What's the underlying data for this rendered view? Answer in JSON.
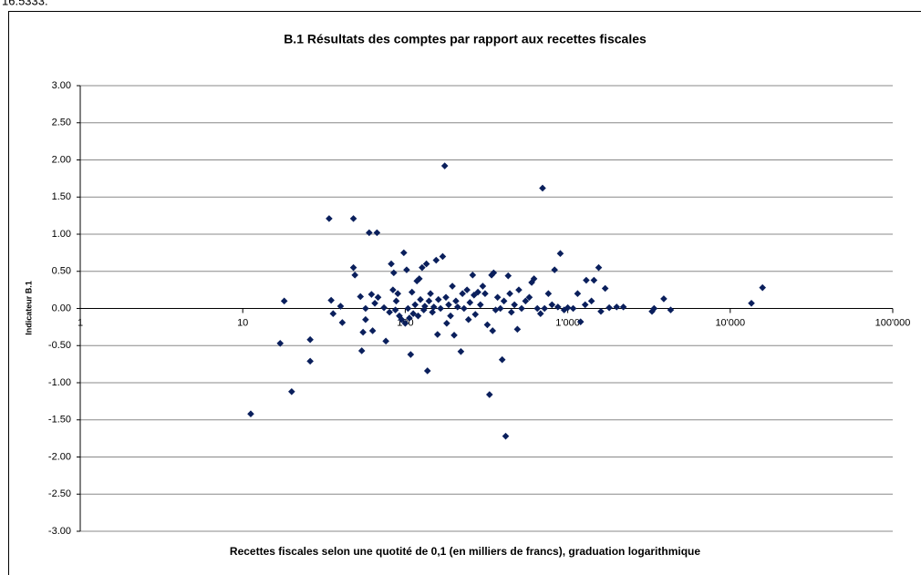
{
  "cropped_text": "16.5333.",
  "chart_data": {
    "type": "scatter",
    "title": "B.1 Résultats des comptes par rapport aux recettes fiscales",
    "xlabel": "Recettes fiscales selon une quotité de 0,1 (en milliers de francs), graduation logarithmique",
    "ylabel": "Indicateur B.1",
    "xscale": "log",
    "grid": true,
    "color": "#0a1f5c",
    "xlim": [
      1,
      100000
    ],
    "xticks": [
      1,
      10,
      100,
      {
        "value": 1000,
        "label": "1'000"
      },
      {
        "value": 10000,
        "label": "10'000"
      },
      {
        "value": 100000,
        "label": "100'000"
      }
    ],
    "ylim": [
      -3,
      3
    ],
    "yticks": [
      {
        "value": 3,
        "label": "3.00"
      },
      {
        "value": 2.5,
        "label": "2.50"
      },
      {
        "value": 2,
        "label": "2.00"
      },
      {
        "value": 1.5,
        "label": "1.50"
      },
      {
        "value": 1,
        "label": "1.00"
      },
      {
        "value": 0.5,
        "label": "0.50"
      },
      {
        "value": 0,
        "label": "0.00"
      },
      {
        "value": -0.5,
        "label": "-0.50"
      },
      {
        "value": -1,
        "label": "-1.00"
      },
      {
        "value": -1.5,
        "label": "-1.50"
      },
      {
        "value": -2,
        "label": "-2.00"
      },
      {
        "value": -2.5,
        "label": "-2.50"
      },
      {
        "value": -3,
        "label": "-3.00"
      }
    ],
    "x": [
      11.2,
      17,
      18,
      20,
      26,
      26,
      34,
      35,
      36,
      40,
      41,
      48,
      48,
      49,
      53,
      54,
      55,
      57,
      57,
      60,
      62,
      63,
      65,
      67,
      68,
      74,
      76,
      80,
      82,
      84,
      85,
      87,
      88,
      90,
      92,
      95,
      98,
      100,
      102,
      104,
      106,
      108,
      110,
      112,
      115,
      118,
      120,
      122,
      124,
      127,
      130,
      132,
      135,
      137,
      140,
      143,
      147,
      150,
      155,
      158,
      160,
      165,
      170,
      175,
      178,
      180,
      185,
      190,
      195,
      200,
      205,
      210,
      220,
      225,
      230,
      240,
      245,
      250,
      260,
      265,
      270,
      280,
      290,
      300,
      310,
      320,
      330,
      340,
      345,
      350,
      360,
      370,
      385,
      395,
      405,
      415,
      430,
      440,
      450,
      470,
      490,
      500,
      520,
      550,
      580,
      600,
      620,
      650,
      680,
      700,
      720,
      760,
      800,
      830,
      870,
      900,
      950,
      1000,
      1080,
      1150,
      1200,
      1280,
      1300,
      1400,
      1450,
      1550,
      1600,
      1700,
      1800,
      2000,
      2200,
      3300,
      3400,
      3900,
      4300,
      13500,
      15800
    ],
    "y": [
      -1.42,
      -0.47,
      0.1,
      -1.12,
      -0.42,
      -0.71,
      1.21,
      0.11,
      -0.07,
      0.03,
      -0.19,
      1.21,
      0.55,
      0.45,
      0.16,
      -0.57,
      -0.32,
      0,
      -0.15,
      1.02,
      0.19,
      -0.3,
      0.07,
      1.02,
      0.15,
      0.01,
      -0.44,
      -0.05,
      0.6,
      0.25,
      0.48,
      -0.02,
      0.1,
      0.2,
      -0.1,
      -0.15,
      0.75,
      -0.2,
      0.52,
      0,
      -0.13,
      -0.62,
      0.22,
      -0.07,
      0.05,
      0.37,
      -0.1,
      0.4,
      0.12,
      0.55,
      -0.02,
      0.03,
      0.6,
      -0.84,
      0.1,
      0.2,
      -0.05,
      0.02,
      0.65,
      -0.35,
      0.12,
      0,
      0.7,
      1.92,
      0.15,
      -0.2,
      0.05,
      -0.1,
      0.3,
      -0.36,
      0.1,
      0.02,
      -0.58,
      0.2,
      0,
      0.25,
      -0.15,
      0.08,
      0.45,
      0.18,
      -0.08,
      0.22,
      0.05,
      0.3,
      0.2,
      -0.22,
      -1.16,
      0.45,
      -0.3,
      0.48,
      -0.02,
      0.15,
      0,
      -0.69,
      0.1,
      -1.72,
      0.44,
      0.2,
      -0.05,
      0.05,
      -0.28,
      0.25,
      0,
      0.1,
      0.15,
      0.35,
      0.4,
      0,
      -0.07,
      1.62,
      0,
      0.2,
      0.05,
      0.52,
      0.02,
      0.74,
      -0.02,
      0.01,
      0,
      0.2,
      -0.18,
      0.05,
      0.38,
      0.1,
      0.38,
      0.55,
      -0.04,
      0.27,
      0.01,
      0.02,
      0.02,
      -0.04,
      0,
      0.13,
      -0.02,
      0.07,
      0.28
    ]
  }
}
